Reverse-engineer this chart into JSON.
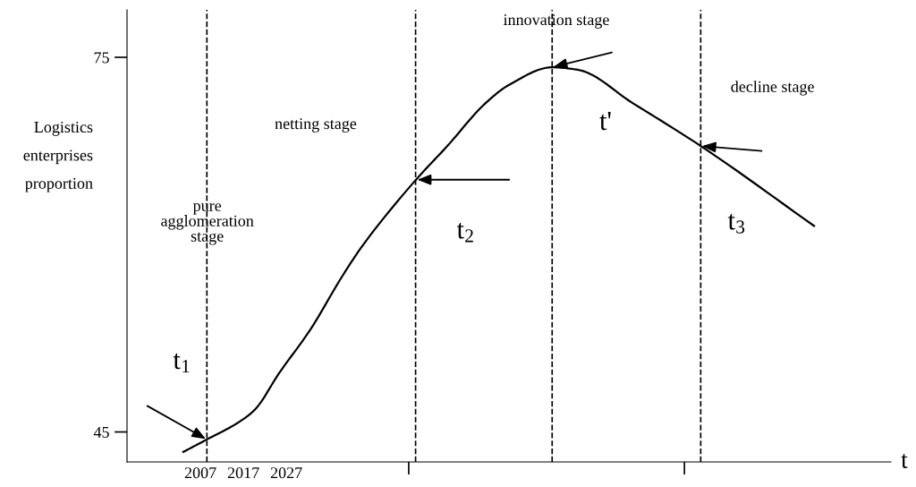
{
  "chart_data": {
    "type": "line",
    "xlabel": "t",
    "ylabel": "Logistics\nenterprises\nproportion",
    "x": [
      2003.0,
      2008.5,
      2016.0,
      2019.7,
      2025.3,
      2032.6,
      2039.9,
      2044.3,
      2057.2,
      2064.5,
      2073.3,
      2078.9,
      2088.9,
      2094.9,
      2107.8,
      2123.5,
      2149.9
    ],
    "series": [
      {
        "color": "#000000",
        "values": [
          43.4,
          44.4,
          45.8,
          46.8,
          49.7,
          53.2,
          57.4,
          59.7,
          65.2,
          67.9,
          71.3,
          72.8,
          74.2,
          74.0,
          71.3,
          67.9,
          61.5
        ]
      }
    ],
    "xlim": [
      1989.9,
      2167.8
    ],
    "ylim": [
      42.6,
      78.8
    ],
    "xticks": [
      2007,
      2017,
      2027,
      {
        "value": 2055.5,
        "label": null
      },
      {
        "value": 2119.7,
        "label": null
      }
    ],
    "yticks": [
      45,
      75
    ],
    "ref_lines": [
      {
        "axis": "x",
        "value": 2008.5,
        "line_style": "dashed",
        "color": "#000000"
      },
      {
        "axis": "x",
        "value": 2057.1,
        "line_style": "dashed",
        "color": "#000000"
      },
      {
        "axis": "x",
        "value": 2088.9,
        "line_style": "dashed",
        "color": "#000000"
      },
      {
        "axis": "x",
        "value": 2123.5,
        "line_style": "dashed",
        "color": "#000000"
      }
    ],
    "annotations": [
      "pure\nagglomeration\nstage",
      "netting stage",
      "innovation stage",
      "decline stage",
      {
        "text": "t$_{1}$",
        "x": 2008.5,
        "y": 44.4
      },
      {
        "text": "t$_{2}$",
        "x": 2057.2,
        "y": 65.2
      },
      {
        "text": "t'",
        "x": 2088.9,
        "y": 74.2
      },
      {
        "text": "t$_{3}$",
        "x": 2123.5,
        "y": 67.9
      }
    ],
    "grid": false,
    "legend": false,
    "marker": "none",
    "line_style": "solid"
  }
}
